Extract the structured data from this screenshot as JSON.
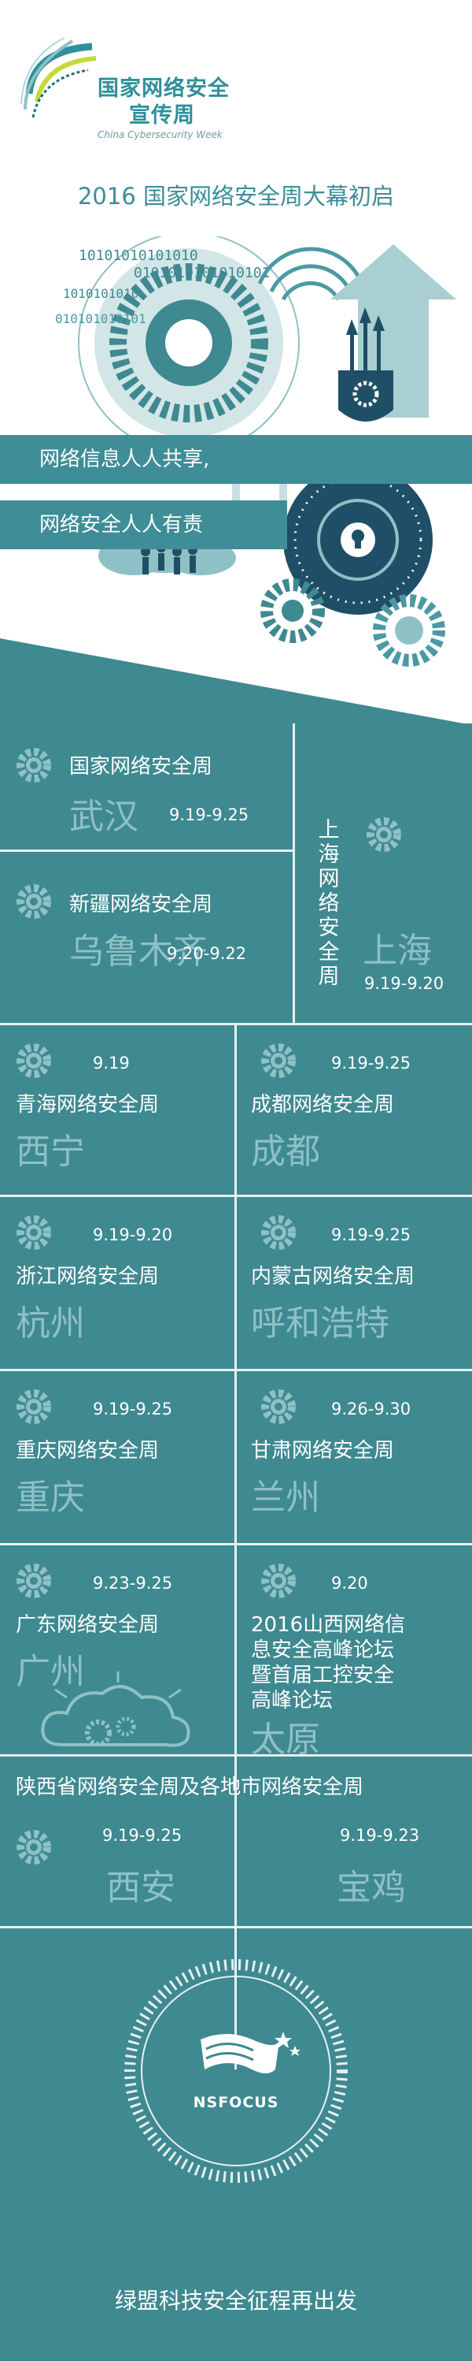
{
  "header": {
    "logo_title_line1": "国家网络安全",
    "logo_title_line2": "宣传周",
    "logo_subtitle": "China Cybersecurity Week",
    "main_title": "2016 国家网络安全周大幕初启"
  },
  "hero": {
    "binary_text_1": "10101010101010",
    "binary_text_2": "0101010101010101",
    "binary_text_3": "1010101010",
    "binary_text_4": "010101010101",
    "slogan_1": "网络信息人人共享,",
    "slogan_2": "网络安全人人有责"
  },
  "events": {
    "wuhan": {
      "title": "国家网络安全周",
      "city": "武汉",
      "date": "9.19-9.25"
    },
    "xinjiang": {
      "title": "新疆网络安全周",
      "city": "乌鲁木齐",
      "date": "9.20-9.22"
    },
    "shanghai": {
      "title": "上海网络安全周",
      "city": "上海",
      "date": "9.19-9.20"
    },
    "qinghai": {
      "title": "青海网络安全周",
      "city": "西宁",
      "date": "9.19"
    },
    "chengdu": {
      "title": "成都网络安全周",
      "city": "成都",
      "date": "9.19-9.25"
    },
    "zhejiang": {
      "title": "浙江网络安全周",
      "city": "杭州",
      "date": "9.19-9.20"
    },
    "neimenggu": {
      "title": "内蒙古网络安全周",
      "city": "呼和浩特",
      "date": "9.19-9.25"
    },
    "chongqing": {
      "title": "重庆网络安全周",
      "city": "重庆",
      "date": "9.19-9.25"
    },
    "gansu": {
      "title": "甘肃网络安全周",
      "city": "兰州",
      "date": "9.26-9.30"
    },
    "guangdong": {
      "title": "广东网络安全周",
      "city": "广州",
      "date": "9.23-9.25"
    },
    "shanxi": {
      "title_line1": "2016山西网络信",
      "title_line2": "息安全高峰论坛",
      "title_line3": "暨首届工控安全",
      "title_line4": "高峰论坛",
      "city": "太原",
      "date": "9.20"
    },
    "shaanxi": {
      "title": "陕西省网络安全周及各地市网络安全周",
      "xian_city": "西安",
      "xian_date": "9.19-9.25",
      "baoji_city": "宝鸡",
      "baoji_date": "9.19-9.23"
    }
  },
  "footer": {
    "brand": "NSFOCUS",
    "slogan": "绿盟科技安全征程再出发"
  },
  "colors": {
    "teal_dark": "#3f8991",
    "teal_mid": "#4a9aa3",
    "teal_light": "#8ec1c6",
    "divider": "#e7f0f1",
    "title_teal": "#3a8e99",
    "navy_gear": "#1f4f66"
  }
}
